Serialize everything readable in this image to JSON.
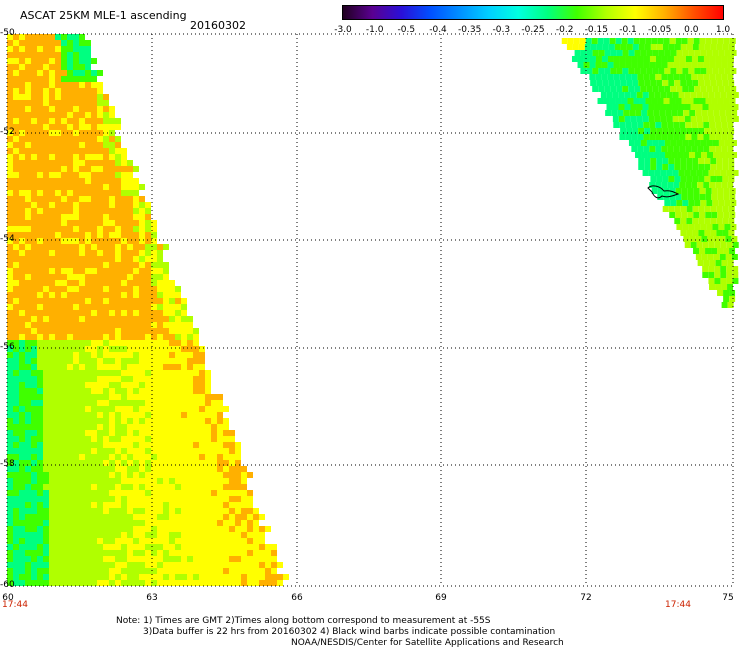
{
  "header": {
    "title": "ASCAT 25KM MLE-1 ascending",
    "date": "20160302"
  },
  "colorbar": {
    "tick_labels": [
      "-3.0",
      "-1.0",
      "-0.5",
      "-0.4",
      "-0.35",
      "-0.3",
      "-0.25",
      "-0.2",
      "-0.15",
      "-0.1",
      "-0.05",
      "0.0",
      "1.0"
    ],
    "colors": [
      "#200020",
      "#5a0090",
      "#2a10d8",
      "#0050ff",
      "#0090ff",
      "#00d0ff",
      "#00ffe0",
      "#00ff80",
      "#40ff00",
      "#b0ff00",
      "#ffff00",
      "#ffb000",
      "#ff5000",
      "#ff0000"
    ]
  },
  "map": {
    "lat_labels": [
      "-50",
      "-52",
      "-54",
      "-56",
      "-58",
      "-60"
    ],
    "lon_labels": [
      "60",
      "63",
      "66",
      "69",
      "72",
      "75"
    ],
    "lat_range": [
      -60,
      -50
    ],
    "lon_range": [
      60,
      75
    ],
    "time_labels": [
      "17:44",
      "17:44"
    ]
  },
  "notes": {
    "line1": "Note: 1) Times are GMT 2)Times along bottom correspond to measurement at -55S",
    "line2": "3)Data buffer is 22 hrs from 20160302 4) Black wind barbs indicate possible contamination",
    "line3": "NOAA/NESDIS/Center for Satellite Applications and Research"
  }
}
